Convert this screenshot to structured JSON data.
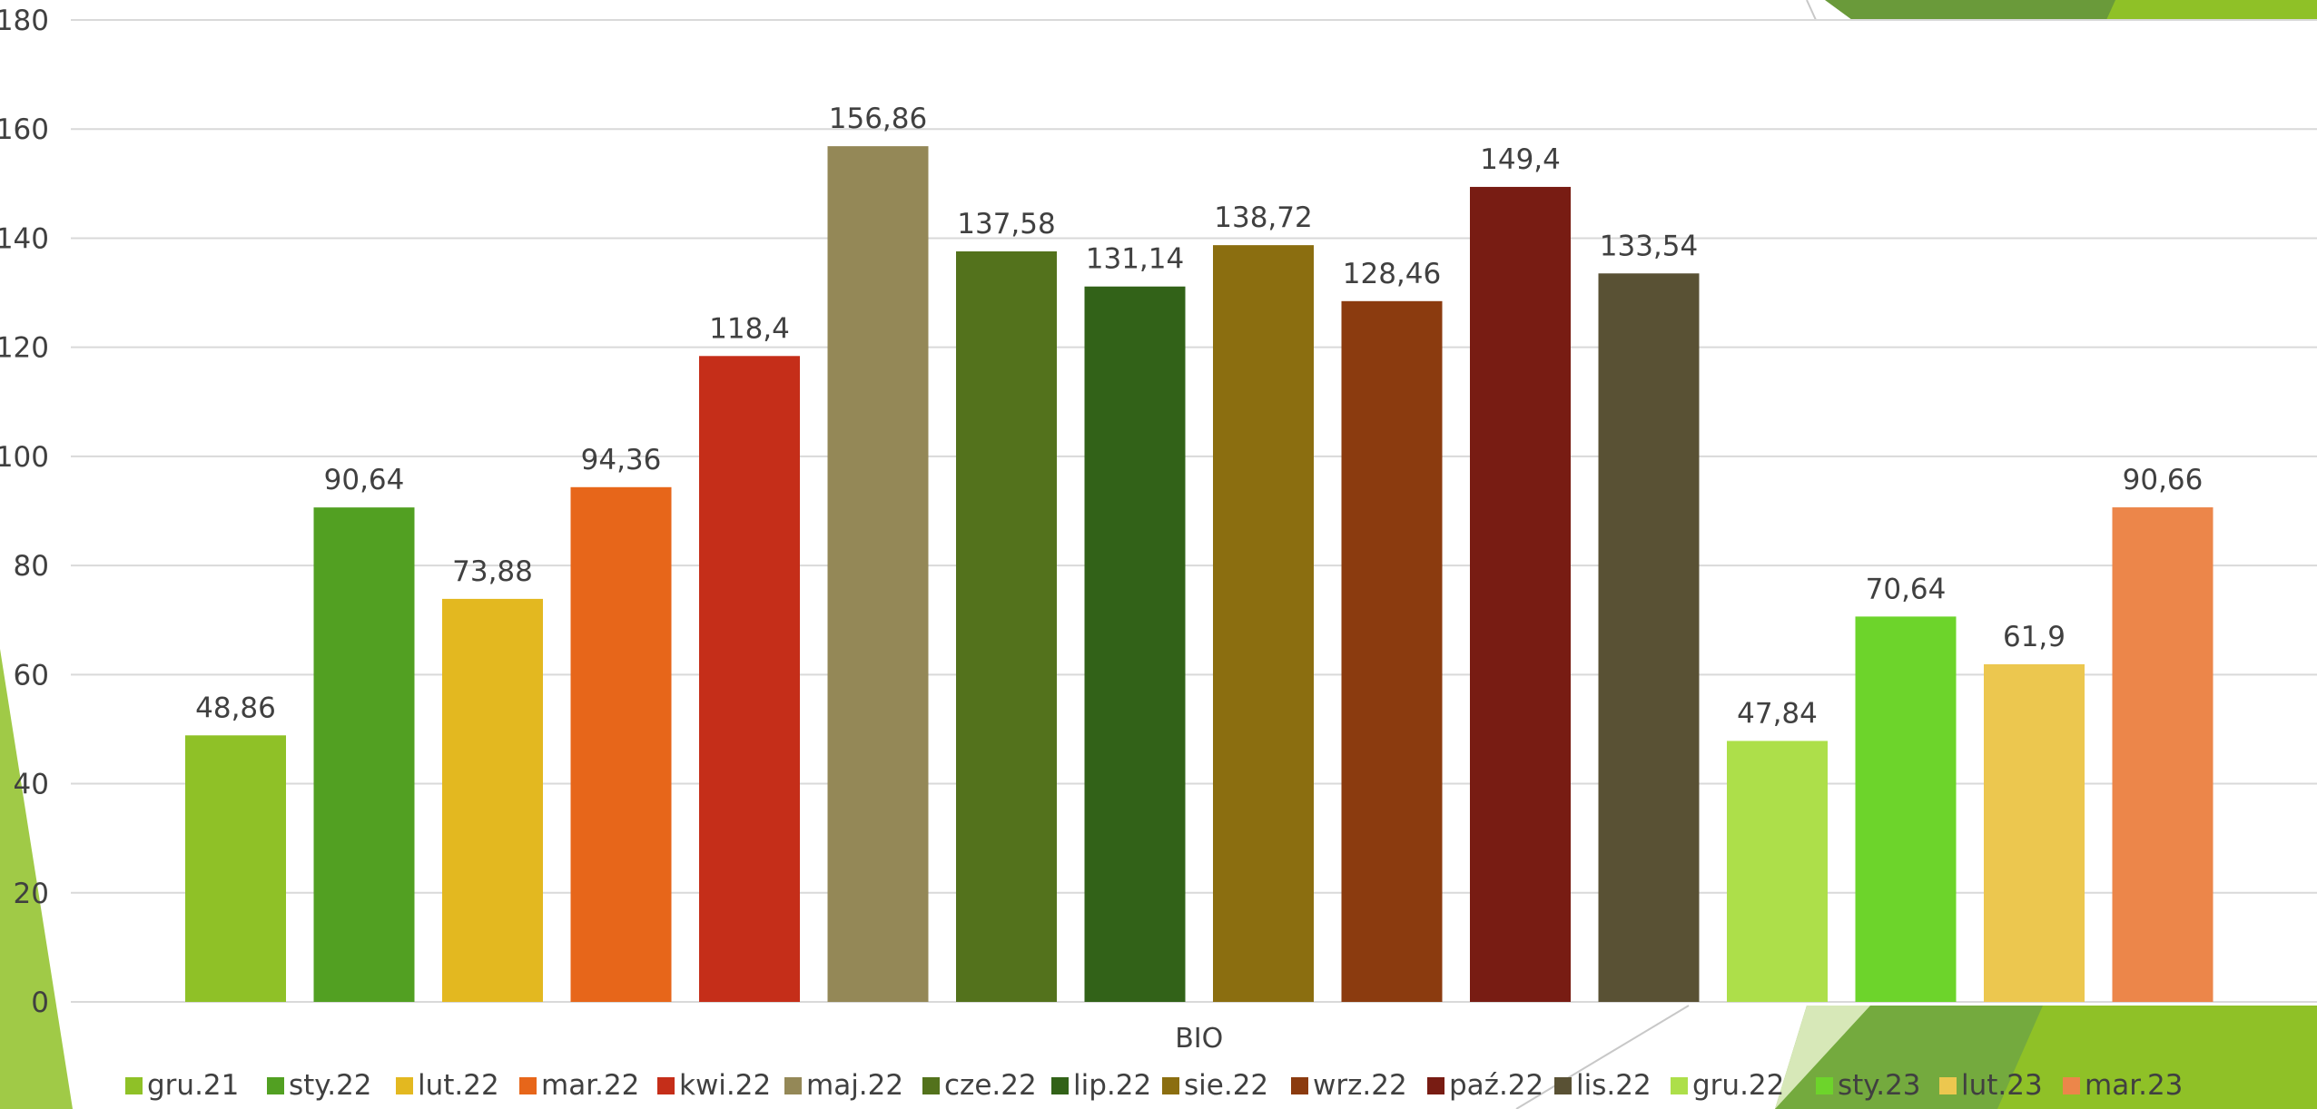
{
  "chart_data": {
    "type": "bar",
    "title": "",
    "xlabel": "",
    "ylabel": "",
    "categories": [
      "BIO"
    ],
    "ylim": [
      0,
      180
    ],
    "y_ticks": [
      0,
      20,
      40,
      60,
      80,
      100,
      120,
      140,
      160,
      180
    ],
    "grid": true,
    "legend_position": "bottom",
    "series": [
      {
        "name": "gru.21",
        "values": [
          48.86
        ],
        "label": "48,86",
        "color": "#8fc127"
      },
      {
        "name": "sty.22",
        "values": [
          90.64
        ],
        "label": "90,64",
        "color": "#52a022"
      },
      {
        "name": "lut.22",
        "values": [
          73.88
        ],
        "label": "73,88",
        "color": "#e3b820"
      },
      {
        "name": "mar.22",
        "values": [
          94.36
        ],
        "label": "94,36",
        "color": "#e7661a"
      },
      {
        "name": "kwi.22",
        "values": [
          118.4
        ],
        "label": "118,4",
        "color": "#c52e19"
      },
      {
        "name": "maj.22",
        "values": [
          156.86
        ],
        "label": "156,86",
        "color": "#948857"
      },
      {
        "name": "cze.22",
        "values": [
          137.58
        ],
        "label": "137,58",
        "color": "#53721c"
      },
      {
        "name": "lip.22",
        "values": [
          131.14
        ],
        "label": "131,14",
        "color": "#326218"
      },
      {
        "name": "sie.22",
        "values": [
          138.72
        ],
        "label": "138,72",
        "color": "#8b6e10"
      },
      {
        "name": "wrz.22",
        "values": [
          128.46
        ],
        "label": "128,46",
        "color": "#8b3b0f"
      },
      {
        "name": "paź.22",
        "values": [
          149.4
        ],
        "label": "149,4",
        "color": "#781c13"
      },
      {
        "name": "lis.22",
        "values": [
          133.54
        ],
        "label": "133,54",
        "color": "#595134"
      },
      {
        "name": "gru.22",
        "values": [
          47.84
        ],
        "label": "47,84",
        "color": "#addf4a"
      },
      {
        "name": "sty.23",
        "values": [
          70.64
        ],
        "label": "70,64",
        "color": "#6dd42b"
      },
      {
        "name": "lut.23",
        "values": [
          61.9
        ],
        "label": "61,9",
        "color": "#ecc74f"
      },
      {
        "name": "mar.23",
        "values": [
          90.66
        ],
        "label": "90,66",
        "color": "#ec864a"
      }
    ]
  }
}
